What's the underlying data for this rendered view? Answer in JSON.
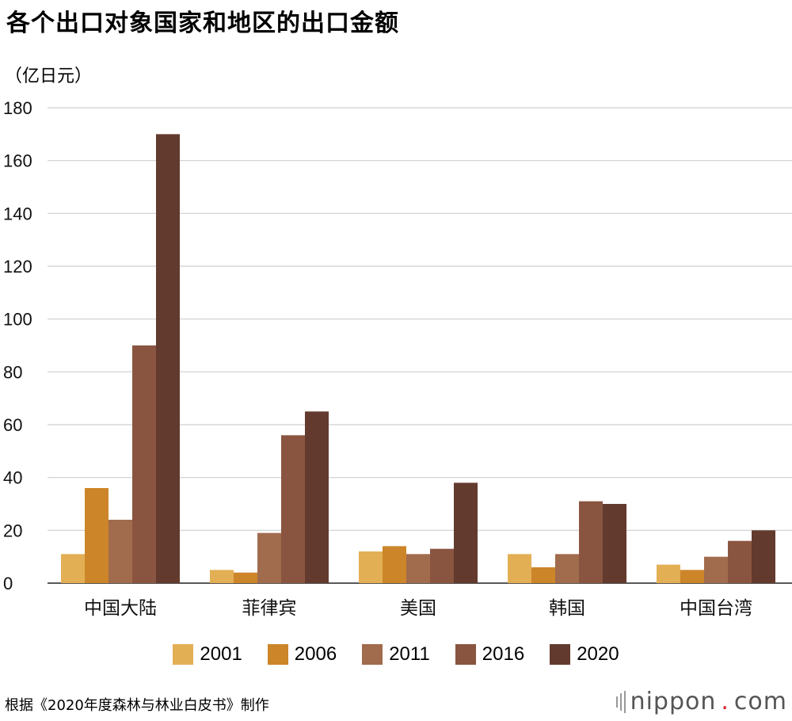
{
  "title": "各个出口对象国家和地区的出口金额",
  "unit_label": "（亿日元）",
  "source": "根据《2020年度森林与林业白皮书》制作",
  "brand": {
    "name": "nippon",
    "dot": ".",
    "suffix": "com"
  },
  "colors": [
    "#e3af55",
    "#cc8529",
    "#a16b4d",
    "#8a5540",
    "#633a2e"
  ],
  "chart_data": {
    "type": "bar",
    "title": "各个出口对象国家和地区的出口金额",
    "ylabel": "（亿日元）",
    "xlabel": "",
    "ylim": [
      0,
      180
    ],
    "yticks": [
      0,
      20,
      40,
      60,
      80,
      100,
      120,
      140,
      160,
      180
    ],
    "grid": true,
    "legend_position": "bottom",
    "categories": [
      "中国大陆",
      "菲律宾",
      "美国",
      "韩国",
      "中国台湾"
    ],
    "series": [
      {
        "name": "2001",
        "values": [
          11,
          5,
          12,
          11,
          7
        ]
      },
      {
        "name": "2006",
        "values": [
          36,
          4,
          14,
          6,
          5
        ]
      },
      {
        "name": "2011",
        "values": [
          24,
          19,
          11,
          11,
          10
        ]
      },
      {
        "name": "2016",
        "values": [
          90,
          56,
          13,
          31,
          16
        ]
      },
      {
        "name": "2020",
        "values": [
          170,
          65,
          38,
          30,
          20
        ]
      }
    ]
  }
}
